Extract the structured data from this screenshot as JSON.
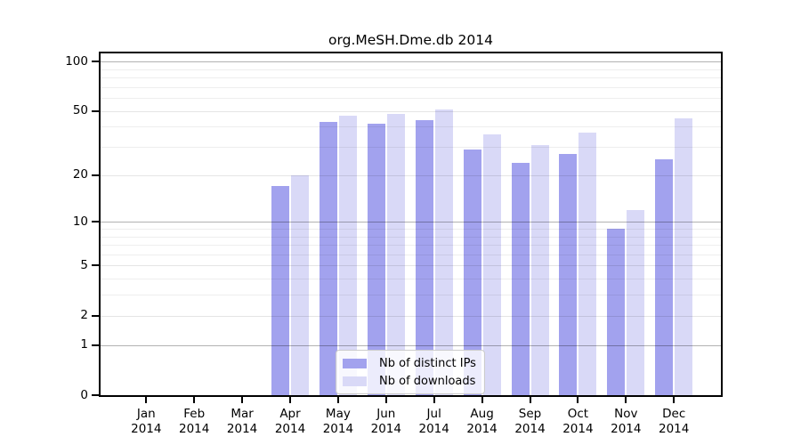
{
  "chart_data": {
    "type": "bar",
    "title": "org.MeSH.Dme.db 2014",
    "categories": [
      "Jan 2014",
      "Feb 2014",
      "Mar 2014",
      "Apr 2014",
      "May 2014",
      "Jun 2014",
      "Jul 2014",
      "Aug 2014",
      "Sep 2014",
      "Oct 2014",
      "Nov 2014",
      "Dec 2014"
    ],
    "series": [
      {
        "name": "Nb of distinct IPs",
        "color": "#a2a2ee",
        "values": [
          0,
          0,
          0,
          17,
          43,
          42,
          44,
          29,
          24,
          27,
          9,
          25
        ]
      },
      {
        "name": "Nb of downloads",
        "color": "#d9d9f7",
        "values": [
          0,
          0,
          0,
          20,
          47,
          48,
          51,
          36,
          31,
          37,
          12,
          45
        ]
      }
    ],
    "xlabel": "",
    "ylabel": "",
    "yscale": "log1p",
    "ylim": [
      0,
      113
    ],
    "y_tick_labels": [
      100,
      50,
      20,
      10,
      5,
      2,
      1,
      0
    ],
    "y_minor_gridlines": [
      3,
      4,
      6,
      7,
      8,
      9,
      30,
      40,
      60,
      70,
      80,
      90
    ],
    "grid": true,
    "legend_position": "bottom-center",
    "frame_color": "#000000",
    "background_color": "#ffffff"
  }
}
